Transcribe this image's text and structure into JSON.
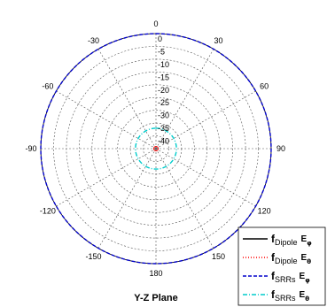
{
  "chart_data": {
    "type": "polar",
    "title": "Y-Z Plane",
    "angle_labels": [
      "0",
      "30",
      "60",
      "90",
      "120",
      "150",
      "180",
      "-150",
      "-120",
      "-90",
      "-60",
      "-30"
    ],
    "radial_labels": [
      "0",
      "-5",
      "-10",
      "-15",
      "-20",
      "-25",
      "-30",
      "-35",
      "-40"
    ],
    "radial_range": [
      -45,
      0
    ],
    "grid": true,
    "legend_position": "bottom-right",
    "series": [
      {
        "label_main": "f",
        "label_sub": "Dipole",
        "field": "E",
        "field_sub": "φ",
        "color": "#000000",
        "line_style": "solid",
        "angles": [
          0,
          30,
          60,
          90,
          120,
          150,
          180,
          -150,
          -120,
          -90,
          -60,
          -30
        ],
        "values": [
          -45,
          -45,
          -45,
          -45,
          -45,
          -45,
          -45,
          -45,
          -45,
          -45,
          -45,
          -45
        ]
      },
      {
        "label_main": "f",
        "label_sub": "Dipole",
        "field": "E",
        "field_sub": "θ",
        "color": "#ff0000",
        "line_style": "dotted",
        "angles": [
          0,
          30,
          60,
          90,
          120,
          150,
          180,
          -150,
          -120,
          -90,
          -60,
          -30
        ],
        "values": [
          -45,
          -45,
          -45,
          -45,
          -45,
          -45,
          -45,
          -45,
          -45,
          -45,
          -45,
          -45
        ]
      },
      {
        "label_main": "f",
        "label_sub": "SRRs",
        "field": "E",
        "field_sub": "φ",
        "color": "#0000cc",
        "line_style": "dashed",
        "angles": [
          0,
          30,
          60,
          90,
          120,
          150,
          180,
          -150,
          -120,
          -90,
          -60,
          -30
        ],
        "values": [
          0,
          0,
          0,
          0,
          0,
          0,
          0,
          0,
          0,
          0,
          0,
          0
        ]
      },
      {
        "label_main": "f",
        "label_sub": "SRRs",
        "field": "E",
        "field_sub": "θ",
        "color": "#00cccc",
        "line_style": "dashdot",
        "angles": [
          0,
          30,
          60,
          90,
          120,
          150,
          180,
          -150,
          -120,
          -90,
          -60,
          -30
        ],
        "values": [
          -37,
          -37,
          -37,
          -37,
          -37,
          -37,
          -37,
          -37,
          -37,
          -37,
          -37,
          -37
        ]
      }
    ]
  }
}
